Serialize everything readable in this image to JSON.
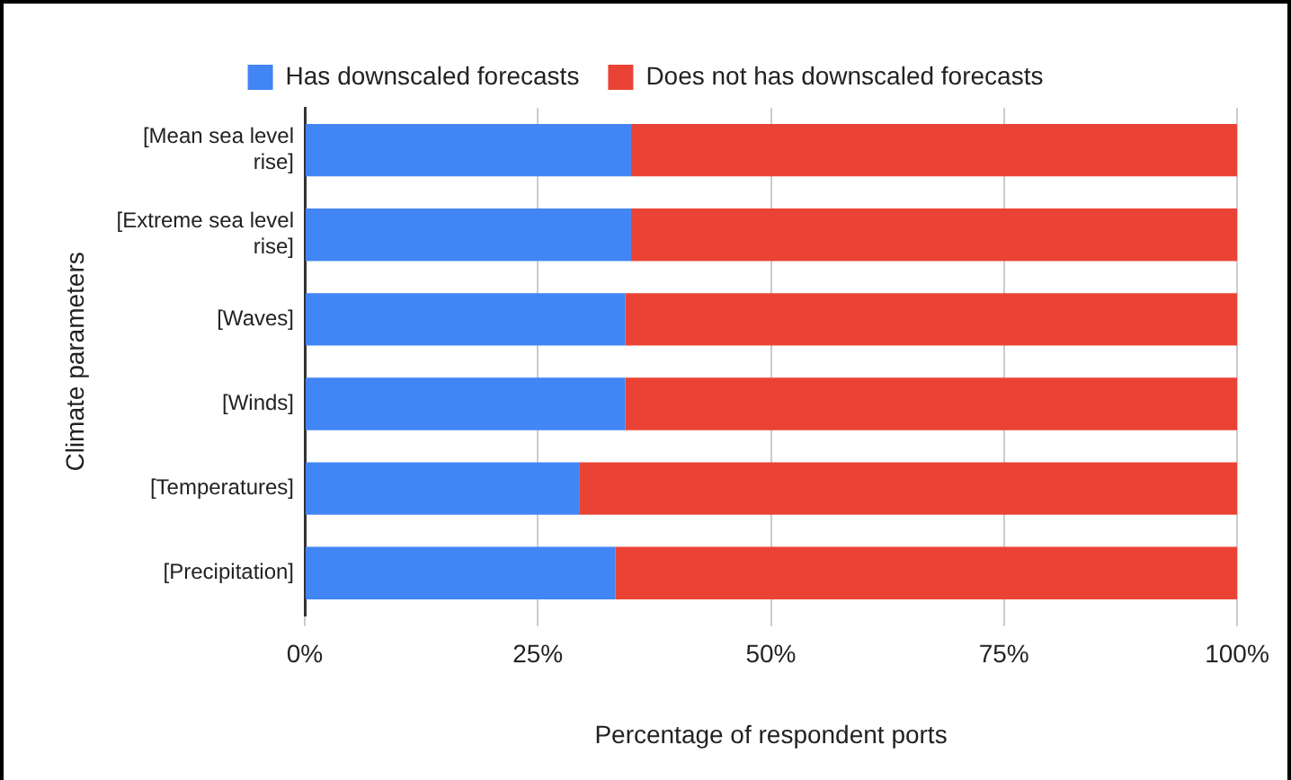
{
  "chart_data": {
    "type": "bar",
    "orientation": "horizontal",
    "stacked": true,
    "xlabel": "Percentage of respondent ports",
    "ylabel": "Climate parameters",
    "categories": [
      "[Mean sea level rise]",
      "[Extreme sea level rise]",
      "[Waves]",
      "[Winds]",
      "[Temperatures]",
      "[Precipitation]"
    ],
    "series": [
      {
        "name": "Has downscaled forecasts",
        "color": "#4285f4",
        "values": [
          35,
          35,
          34.4,
          34.4,
          29.5,
          33.3
        ]
      },
      {
        "name": "Does not has downscaled forecasts",
        "color": "#ea4335",
        "values": [
          65,
          65,
          65.6,
          65.6,
          70.5,
          66.7
        ]
      }
    ],
    "xlim": [
      0,
      100
    ],
    "xticks": [
      {
        "value": 0,
        "label": "0%"
      },
      {
        "value": 25,
        "label": "25%"
      },
      {
        "value": 50,
        "label": "50%"
      },
      {
        "value": 75,
        "label": "75%"
      },
      {
        "value": 100,
        "label": "100%"
      }
    ],
    "grid": "x",
    "legend": "top"
  }
}
